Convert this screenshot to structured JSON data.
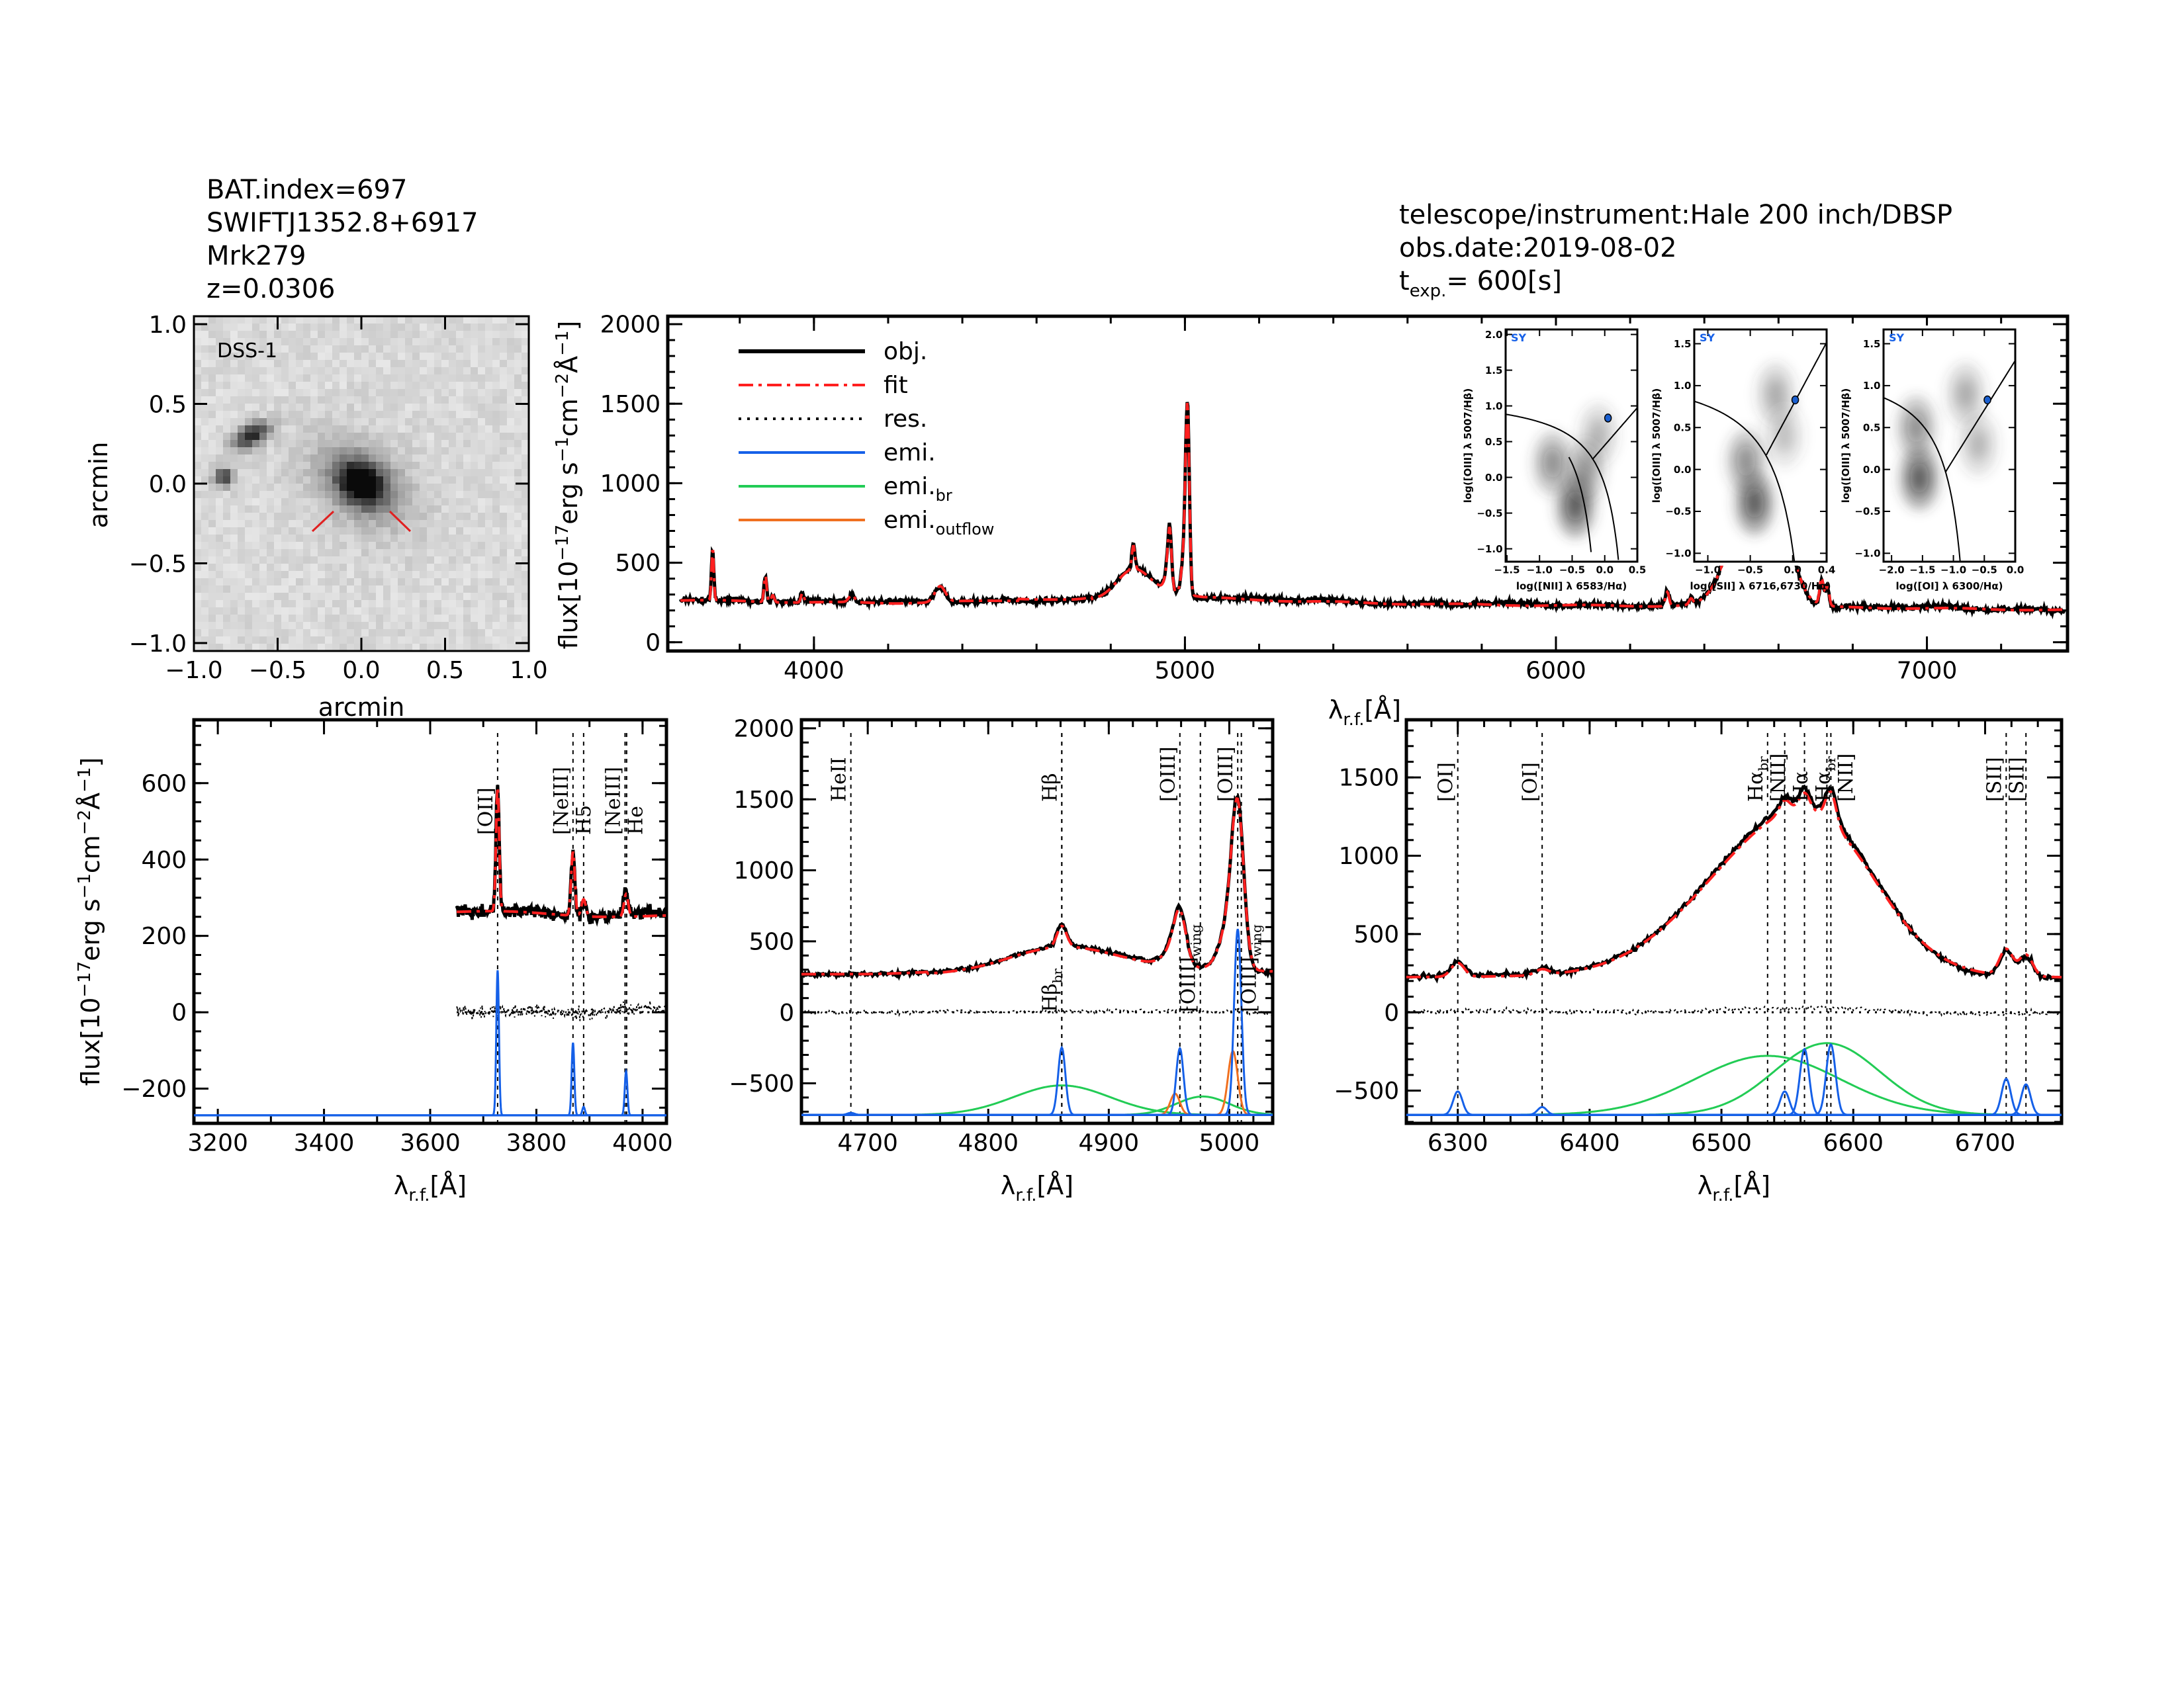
{
  "header": {
    "bat_index": "BAT.index=697",
    "swift_name": "SWIFTJ1352.8+6917",
    "source_name": "Mrk279",
    "redshift": "z=0.0306",
    "telescope": "telescope/instrument:Hale 200 inch/DBSP",
    "obs_date": "obs.date:2019-08-02",
    "texp_t": "t",
    "texp_sub": "exp.",
    "texp_value": "=  600[s]"
  },
  "image_panel": {
    "survey_label": "DSS-1",
    "xlabel": "arcmin",
    "ylabel": "arcmin",
    "xlim": [
      -1.0,
      1.0
    ],
    "ylim": [
      -1.05,
      1.05
    ],
    "ticks": [
      -1.0,
      -0.5,
      0.0,
      0.5,
      1.0
    ],
    "tick_labels": [
      "−1.0",
      "−0.5",
      "0.0",
      "0.5",
      "1.0"
    ],
    "marker_color": "#e02020"
  },
  "labels": {
    "flux_ylabel": [
      {
        "t": "flux[10"
      },
      {
        "t": "−17",
        "sup": true
      },
      {
        "t": "erg s"
      },
      {
        "t": "−1",
        "sup": true
      },
      {
        "t": "cm"
      },
      {
        "t": "−2",
        "sup": true
      },
      {
        "t": "Å"
      },
      {
        "t": "−1",
        "sup": true
      },
      {
        "t": "]"
      }
    ],
    "wave_xlabel": [
      {
        "t": "λ"
      },
      {
        "t": "r.f.",
        "sub": true
      },
      {
        "t": "[Å]"
      }
    ]
  },
  "colors": {
    "obj": "#000000",
    "fit": "#ff2020",
    "res": "#000000",
    "emi": "#1560e8",
    "emi_br": "#22cc55",
    "emi_outflow": "#f07020",
    "agn_tag": "#1560e8",
    "bpt_point": "#1a5fd0"
  },
  "chart_data": [
    {
      "type": "line",
      "panel": "full-spectrum",
      "xlim": [
        3606,
        7379
      ],
      "ylim": [
        -55,
        2050
      ],
      "xticks": [
        4000,
        5000,
        6000,
        7000
      ],
      "xtick_labels": [
        "4000",
        "5000",
        "6000",
        "7000"
      ],
      "yticks": [
        0,
        500,
        1000,
        1500,
        2000
      ],
      "ytick_labels": [
        "0",
        "500",
        "1000",
        "1500",
        "2000"
      ],
      "data_range": [
        3640,
        7370
      ],
      "legend": [
        {
          "key": "obj",
          "label": "obj.",
          "sub": "",
          "style": "solid"
        },
        {
          "key": "fit",
          "label": "fit",
          "sub": "",
          "style": "dashdot"
        },
        {
          "key": "res",
          "label": "res.",
          "sub": "",
          "style": "dotted"
        },
        {
          "key": "emi",
          "label": "emi.",
          "sub": "",
          "style": "solid"
        },
        {
          "key": "emi_br",
          "label": "emi.",
          "sub": "br",
          "style": "solid"
        },
        {
          "key": "emi_outflow",
          "label": "emi.",
          "sub": "outflow",
          "style": "solid"
        }
      ],
      "continuum": [
        [
          3600,
          270
        ],
        [
          3800,
          262
        ],
        [
          4000,
          255
        ],
        [
          4200,
          250
        ],
        [
          4450,
          262
        ],
        [
          4550,
          268
        ],
        [
          4700,
          258
        ],
        [
          4800,
          270
        ],
        [
          4950,
          318
        ],
        [
          5050,
          285
        ],
        [
          5300,
          262
        ],
        [
          5600,
          245
        ],
        [
          6000,
          235
        ],
        [
          6300,
          232
        ],
        [
          6800,
          222
        ],
        [
          7380,
          205
        ]
      ],
      "observed_lines": [
        {
          "center": 3727,
          "sigma": 3,
          "amp": 330
        },
        {
          "center": 3869,
          "sigma": 3.5,
          "amp": 170
        },
        {
          "center": 3889,
          "sigma": 4,
          "amp": 45
        },
        {
          "center": 3969,
          "sigma": 4,
          "amp": 60
        },
        {
          "center": 4102,
          "sigma": 8,
          "amp": 45
        },
        {
          "center": 4340,
          "sigma": 14,
          "amp": 100
        },
        {
          "center": 4861,
          "sigma": 45,
          "amp": 180
        },
        {
          "center": 4861,
          "sigma": 4,
          "amp": 150
        },
        {
          "center": 4953,
          "sigma": 8,
          "amp": 100
        },
        {
          "center": 4959,
          "sigma": 5,
          "amp": 330
        },
        {
          "center": 5000,
          "sigma": 8,
          "amp": 300
        },
        {
          "center": 5007,
          "sigma": 5,
          "amp": 1020
        },
        {
          "center": 6300,
          "sigma": 5,
          "amp": 90
        },
        {
          "center": 6364,
          "sigma": 5,
          "amp": 35
        },
        {
          "center": 6540,
          "sigma": 60,
          "amp": 850
        },
        {
          "center": 6585,
          "sigma": 40,
          "amp": 350
        },
        {
          "center": 6548,
          "sigma": 4,
          "amp": 80
        },
        {
          "center": 6563,
          "sigma": 4,
          "amp": 110
        },
        {
          "center": 6583,
          "sigma": 4,
          "amp": 200
        },
        {
          "center": 6716,
          "sigma": 5,
          "amp": 170
        },
        {
          "center": 6731,
          "sigma": 5,
          "amp": 140
        }
      ]
    },
    {
      "type": "line",
      "panel": "zoom-oii",
      "xlim": [
        3155,
        4045
      ],
      "ylim": [
        -291,
        766
      ],
      "data_range": [
        3650,
        4045
      ],
      "xticks": [
        3200,
        3400,
        3600,
        3800,
        4000
      ],
      "xtick_labels": [
        "3200",
        "3400",
        "3600",
        "3800",
        "4000"
      ],
      "yticks": [
        -200,
        0,
        200,
        400,
        600
      ],
      "ytick_labels": [
        "−200",
        "0",
        "200",
        "400",
        "600"
      ],
      "emission_baseline": -270,
      "emission": [
        {
          "kind": "emi",
          "center": 3727,
          "sigma": 2.5,
          "amp": 380
        },
        {
          "kind": "emi",
          "center": 3869,
          "sigma": 2.5,
          "amp": 190
        },
        {
          "kind": "emi",
          "center": 3889,
          "sigma": 2.5,
          "amp": 22
        },
        {
          "kind": "emi",
          "center": 3969,
          "sigma": 2.5,
          "amp": 115
        }
      ],
      "line_labels": [
        {
          "text": "[OII]",
          "wave": 3727,
          "row": "upper"
        },
        {
          "text": "[NeIII]",
          "wave": 3869,
          "row": "upper"
        },
        {
          "text": "H5",
          "wave": 3889,
          "row": "upper"
        },
        {
          "text": "[NeIII]",
          "wave": 3967,
          "row": "upper"
        },
        {
          "text": "He",
          "wave": 3970,
          "row": "upper",
          "shift": 22
        }
      ]
    },
    {
      "type": "line",
      "panel": "zoom-hbeta",
      "xlim": [
        4645,
        5036
      ],
      "ylim": [
        -782,
        2060
      ],
      "data_range": [
        4645,
        5036
      ],
      "xticks": [
        4700,
        4800,
        4900,
        5000
      ],
      "xtick_labels": [
        "4700",
        "4800",
        "4900",
        "5000"
      ],
      "yticks": [
        -500,
        0,
        500,
        1000,
        1500,
        2000
      ],
      "ytick_labels": [
        "−500",
        "0",
        "500",
        "1000",
        "1500",
        "2000"
      ],
      "emission_baseline": -723,
      "emission": [
        {
          "kind": "emi",
          "center": 4686,
          "sigma": 3,
          "amp": 15
        },
        {
          "kind": "emi",
          "center": 4861,
          "sigma": 3,
          "amp": 475
        },
        {
          "kind": "emi",
          "center": 4959,
          "sigma": 3,
          "amp": 470
        },
        {
          "kind": "emi",
          "center": 5007,
          "sigma": 3,
          "amp": 1310
        },
        {
          "kind": "emi_br",
          "center": 4861,
          "sigma": 40,
          "amp": 208
        },
        {
          "kind": "emi_br",
          "center": 4978,
          "sigma": 22,
          "amp": 130
        },
        {
          "kind": "emi_outflow",
          "center": 4955,
          "sigma": 4,
          "amp": 150
        },
        {
          "kind": "emi_outflow",
          "center": 5003,
          "sigma": 4,
          "amp": 450
        }
      ],
      "line_labels": [
        {
          "text": "HeII",
          "wave": 4686,
          "row": "upper"
        },
        {
          "text": "Hβ",
          "wave": 4861,
          "row": "upper"
        },
        {
          "text": "Hβ",
          "sub": "br",
          "wave": 4861,
          "row": "lower"
        },
        {
          "text": "[OIII]",
          "wave": 4959,
          "row": "upper"
        },
        {
          "text": "[OIII]",
          "sub": "wing",
          "wave": 4976,
          "row": "lower"
        },
        {
          "text": "[OIII]",
          "wave": 5007,
          "row": "upper"
        },
        {
          "text": "[OIII]",
          "sub": "wing",
          "wave": 5010,
          "row": "lower",
          "shift": 30
        }
      ]
    },
    {
      "type": "line",
      "panel": "zoom-halpha",
      "xlim": [
        6261,
        6758
      ],
      "ylim": [
        -709,
        1868
      ],
      "data_range": [
        6261,
        6758
      ],
      "xticks": [
        6300,
        6400,
        6500,
        6600,
        6700
      ],
      "xtick_labels": [
        "6300",
        "6400",
        "6500",
        "6600",
        "6700"
      ],
      "yticks": [
        -500,
        0,
        500,
        1000,
        1500
      ],
      "ytick_labels": [
        "−500",
        "0",
        "500",
        "1000",
        "1500"
      ],
      "emission_baseline": -655,
      "emission": [
        {
          "kind": "emi",
          "center": 6300,
          "sigma": 3.5,
          "amp": 150
        },
        {
          "kind": "emi",
          "center": 6364,
          "sigma": 3.5,
          "amp": 50
        },
        {
          "kind": "emi",
          "center": 6548,
          "sigma": 3.5,
          "amp": 150
        },
        {
          "kind": "emi",
          "center": 6563,
          "sigma": 3.5,
          "amp": 420
        },
        {
          "kind": "emi",
          "center": 6583,
          "sigma": 3.5,
          "amp": 450
        },
        {
          "kind": "emi",
          "center": 6716,
          "sigma": 3.5,
          "amp": 230
        },
        {
          "kind": "emi",
          "center": 6731,
          "sigma": 3.5,
          "amp": 195
        },
        {
          "kind": "emi_br",
          "center": 6535,
          "sigma": 55,
          "amp": 377
        },
        {
          "kind": "emi_br",
          "center": 6580,
          "sigma": 40,
          "amp": 458
        }
      ],
      "line_labels": [
        {
          "text": "[OI]",
          "wave": 6300,
          "row": "upper"
        },
        {
          "text": "[OI]",
          "wave": 6364,
          "row": "upper"
        },
        {
          "text": "Hα",
          "sub": "br",
          "wave": 6535,
          "row": "upper"
        },
        {
          "text": "[NII]",
          "wave": 6548,
          "row": "upper"
        },
        {
          "text": "Hα",
          "wave": 6563,
          "row": "upper"
        },
        {
          "text": "Hα",
          "sub": "br",
          "wave": 6580,
          "row": "upper"
        },
        {
          "text": "[NII]",
          "wave": 6583,
          "row": "upper"
        },
        {
          "text": "[SII]",
          "wave": 6716,
          "row": "upper"
        },
        {
          "text": "[SII]",
          "wave": 6731,
          "row": "upper"
        }
      ]
    },
    {
      "type": "scatter",
      "panel": "bpt-nii",
      "agn_class": "SY",
      "xlabel": "log([NII] λ 6583/Hα)",
      "ylabel": "log([OIII] λ 5007/Hβ)",
      "xlim": [
        -1.52,
        0.5
      ],
      "ylim": [
        -1.18,
        2.07
      ],
      "xticks": [
        -1.5,
        -1.0,
        -0.5,
        0.0,
        0.5
      ],
      "xtick_labels": [
        "−1.5",
        "−1.0",
        "−0.5",
        "0.0",
        "0.5"
      ],
      "yticks": [
        -1.0,
        -0.5,
        0.0,
        0.5,
        1.0,
        1.5,
        2.0
      ],
      "ytick_labels": [
        "−1.0",
        "−0.5",
        "0.0",
        "0.5",
        "1.0",
        "1.5",
        "2.0"
      ],
      "point": [
        0.05,
        0.83
      ],
      "density_peaks": [
        [
          -0.45,
          -0.4,
          0.95
        ],
        [
          -0.8,
          0.2,
          0.6
        ],
        [
          -0.1,
          0.6,
          0.35
        ],
        [
          -0.3,
          0.1,
          0.5
        ]
      ]
    },
    {
      "type": "scatter",
      "panel": "bpt-sii",
      "agn_class": "SY",
      "xlabel": "log([SII] λ 6716,6730/Hα)",
      "ylabel": "log([OIII] λ 5007/Hβ)",
      "xlim": [
        -1.16,
        0.4
      ],
      "ylim": [
        -1.1,
        1.67
      ],
      "xticks": [
        -1.0,
        -0.5,
        0.0,
        0.4
      ],
      "xtick_labels": [
        "−1.0",
        "−0.5",
        "0.0",
        "0.4"
      ],
      "yticks": [
        -1.0,
        -0.5,
        0.0,
        0.5,
        1.0,
        1.5
      ],
      "ytick_labels": [
        "−1.0",
        "−0.5",
        "0.0",
        "0.5",
        "1.0",
        "1.5"
      ],
      "point": [
        0.03,
        0.83
      ],
      "density_peaks": [
        [
          -0.45,
          -0.4,
          0.95
        ],
        [
          -0.55,
          0.1,
          0.6
        ],
        [
          -0.2,
          0.9,
          0.4
        ],
        [
          -0.1,
          0.4,
          0.3
        ]
      ]
    },
    {
      "type": "scatter",
      "panel": "bpt-oi",
      "agn_class": "SY",
      "xlabel": "log([OI] λ 6300/Hα)",
      "ylabel": "log([OIII] λ 5007/Hβ)",
      "xlim": [
        -2.13,
        0.0
      ],
      "ylim": [
        -1.1,
        1.67
      ],
      "xticks": [
        -2.0,
        -1.5,
        -1.0,
        -0.5,
        0.0
      ],
      "xtick_labels": [
        "−2.0",
        "−1.5",
        "−1.0",
        "−0.5",
        "0.0"
      ],
      "yticks": [
        -1.0,
        -0.5,
        0.0,
        0.5,
        1.0,
        1.5
      ],
      "ytick_labels": [
        "−1.0",
        "−0.5",
        "0.0",
        "0.5",
        "1.0",
        "1.5"
      ],
      "point": [
        -0.45,
        0.83
      ],
      "density_peaks": [
        [
          -1.55,
          -0.1,
          0.95
        ],
        [
          -1.6,
          0.5,
          0.6
        ],
        [
          -0.8,
          0.9,
          0.4
        ],
        [
          -0.6,
          0.3,
          0.35
        ]
      ]
    }
  ]
}
